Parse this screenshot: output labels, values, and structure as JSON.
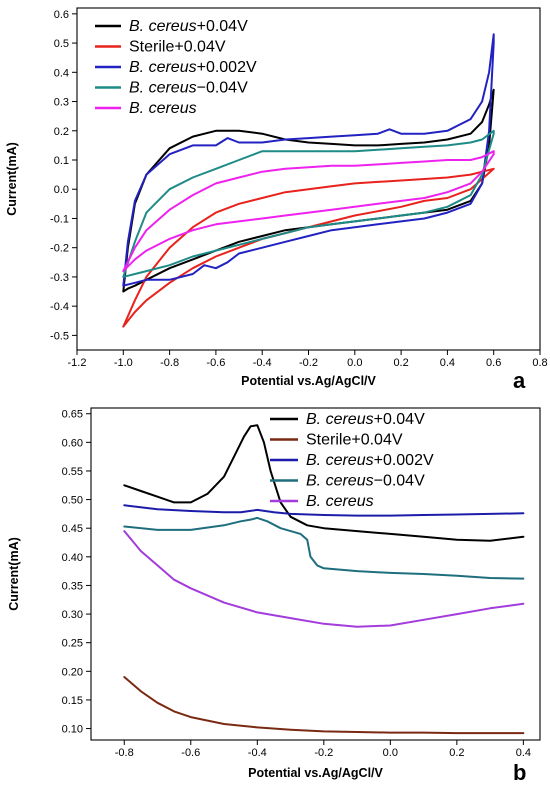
{
  "chart_data": [
    {
      "type": "line",
      "panel": "a",
      "xlabel": "Potential vs.Ag/AgCl/V",
      "ylabel": "Current(mA)",
      "xlim": [
        -1.2,
        0.8
      ],
      "ylim": [
        -0.55,
        0.62
      ],
      "xticks": [
        -1.2,
        -1.0,
        -0.8,
        -0.6,
        -0.4,
        -0.2,
        0.0,
        0.2,
        0.4,
        0.6,
        0.8
      ],
      "xtick_labels": [
        "-1.2",
        "-1.0",
        "-0.8",
        "-0.6",
        "-0.4",
        "-0.2",
        "0.0",
        "0.2",
        "0.4",
        "0.6",
        "0.8"
      ],
      "yticks": [
        -0.5,
        -0.4,
        -0.3,
        -0.2,
        -0.1,
        0.0,
        0.1,
        0.2,
        0.3,
        0.4,
        0.5,
        0.6
      ],
      "ytick_labels": [
        "-0.5",
        "-0.4",
        "-0.3",
        "-0.2",
        "-0.1",
        "0.0",
        "0.1",
        "0.2",
        "0.3",
        "0.4",
        "0.5",
        "0.6"
      ],
      "grid": false,
      "legend_position": "top-left",
      "series": [
        {
          "name": "B. cereus+0.04V",
          "name_parts": [
            {
              "t": "B. cereus",
              "i": true
            },
            {
              "t": "+0.04V",
              "i": false
            }
          ],
          "color": "#000000",
          "x": [
            -1.0,
            -0.98,
            -0.95,
            -0.9,
            -0.8,
            -0.7,
            -0.6,
            -0.5,
            -0.4,
            -0.3,
            -0.2,
            -0.1,
            0.0,
            0.1,
            0.2,
            0.3,
            0.4,
            0.5,
            0.55,
            0.58,
            0.6,
            0.6,
            0.58,
            0.55,
            0.5,
            0.4,
            0.3,
            0.2,
            0.1,
            0.0,
            -0.1,
            -0.2,
            -0.3,
            -0.4,
            -0.5,
            -0.6,
            -0.7,
            -0.8,
            -0.9,
            -0.95,
            -0.98,
            -1.0
          ],
          "y": [
            -0.35,
            -0.2,
            -0.05,
            0.05,
            0.14,
            0.18,
            0.2,
            0.2,
            0.19,
            0.17,
            0.16,
            0.155,
            0.15,
            0.15,
            0.155,
            0.16,
            0.17,
            0.19,
            0.23,
            0.29,
            0.34,
            0.34,
            0.15,
            0.02,
            -0.04,
            -0.07,
            -0.08,
            -0.09,
            -0.1,
            -0.11,
            -0.12,
            -0.13,
            -0.14,
            -0.16,
            -0.18,
            -0.21,
            -0.24,
            -0.27,
            -0.31,
            -0.33,
            -0.34,
            -0.35
          ]
        },
        {
          "name": "Sterile+0.04V",
          "name_parts": [
            {
              "t": "Sterile+0.04V",
              "i": false
            }
          ],
          "color": "#e8221c",
          "x": [
            -1.0,
            -0.95,
            -0.9,
            -0.8,
            -0.7,
            -0.6,
            -0.5,
            -0.4,
            -0.3,
            -0.2,
            -0.1,
            0.0,
            0.1,
            0.2,
            0.3,
            0.4,
            0.5,
            0.6,
            0.6,
            0.5,
            0.4,
            0.3,
            0.2,
            0.1,
            0.0,
            -0.1,
            -0.2,
            -0.3,
            -0.4,
            -0.5,
            -0.6,
            -0.7,
            -0.8,
            -0.9,
            -0.95,
            -1.0
          ],
          "y": [
            -0.47,
            -0.38,
            -0.3,
            -0.2,
            -0.13,
            -0.08,
            -0.05,
            -0.03,
            -0.01,
            0.0,
            0.01,
            0.02,
            0.025,
            0.03,
            0.035,
            0.04,
            0.05,
            0.07,
            0.07,
            0.0,
            -0.03,
            -0.04,
            -0.06,
            -0.075,
            -0.09,
            -0.11,
            -0.13,
            -0.15,
            -0.17,
            -0.2,
            -0.23,
            -0.27,
            -0.32,
            -0.38,
            -0.42,
            -0.47
          ]
        },
        {
          "name": "B. cereus+0.002V",
          "name_parts": [
            {
              "t": "B. cereus",
              "i": true
            },
            {
              "t": "+0.002V",
              "i": false
            }
          ],
          "color": "#2222c2",
          "x": [
            -1.0,
            -0.98,
            -0.95,
            -0.9,
            -0.8,
            -0.7,
            -0.6,
            -0.55,
            -0.5,
            -0.4,
            -0.3,
            -0.2,
            -0.1,
            0.0,
            0.1,
            0.15,
            0.2,
            0.3,
            0.4,
            0.5,
            0.55,
            0.58,
            0.6,
            0.6,
            0.58,
            0.55,
            0.5,
            0.4,
            0.3,
            0.2,
            0.1,
            0.0,
            -0.1,
            -0.2,
            -0.3,
            -0.4,
            -0.5,
            -0.55,
            -0.6,
            -0.65,
            -0.7,
            -0.8,
            -0.9,
            -0.95,
            -1.0
          ],
          "y": [
            -0.33,
            -0.18,
            -0.04,
            0.05,
            0.12,
            0.15,
            0.15,
            0.175,
            0.16,
            0.16,
            0.17,
            0.175,
            0.18,
            0.185,
            0.19,
            0.205,
            0.19,
            0.19,
            0.2,
            0.24,
            0.3,
            0.4,
            0.53,
            0.5,
            0.2,
            0.02,
            -0.05,
            -0.08,
            -0.1,
            -0.11,
            -0.12,
            -0.13,
            -0.14,
            -0.16,
            -0.18,
            -0.2,
            -0.22,
            -0.25,
            -0.27,
            -0.26,
            -0.29,
            -0.31,
            -0.31,
            -0.32,
            -0.33
          ]
        },
        {
          "name": "B. cereus−0.04V",
          "name_parts": [
            {
              "t": "B. cereus",
              "i": true
            },
            {
              "t": "−0.04V",
              "i": false
            }
          ],
          "color": "#1e8b86",
          "x": [
            -1.0,
            -0.95,
            -0.9,
            -0.8,
            -0.7,
            -0.6,
            -0.5,
            -0.4,
            -0.3,
            -0.2,
            -0.1,
            0.0,
            0.1,
            0.2,
            0.3,
            0.4,
            0.5,
            0.55,
            0.6,
            0.6,
            0.55,
            0.5,
            0.4,
            0.3,
            0.2,
            0.1,
            0.0,
            -0.1,
            -0.2,
            -0.3,
            -0.4,
            -0.5,
            -0.6,
            -0.7,
            -0.8,
            -0.9,
            -0.95,
            -1.0
          ],
          "y": [
            -0.3,
            -0.18,
            -0.08,
            0.0,
            0.04,
            0.07,
            0.1,
            0.13,
            0.13,
            0.13,
            0.13,
            0.13,
            0.135,
            0.14,
            0.145,
            0.15,
            0.16,
            0.17,
            0.2,
            0.19,
            0.05,
            -0.02,
            -0.06,
            -0.08,
            -0.09,
            -0.1,
            -0.11,
            -0.12,
            -0.13,
            -0.15,
            -0.17,
            -0.19,
            -0.21,
            -0.23,
            -0.26,
            -0.28,
            -0.29,
            -0.3
          ]
        },
        {
          "name": "B. cereus",
          "name_parts": [
            {
              "t": "B. cereus",
              "i": true
            }
          ],
          "color": "#ee22ee",
          "x": [
            -1.0,
            -0.95,
            -0.9,
            -0.8,
            -0.7,
            -0.6,
            -0.5,
            -0.4,
            -0.3,
            -0.2,
            -0.1,
            0.0,
            0.1,
            0.2,
            0.3,
            0.4,
            0.5,
            0.55,
            0.6,
            0.6,
            0.55,
            0.5,
            0.4,
            0.3,
            0.2,
            0.1,
            0.0,
            -0.1,
            -0.2,
            -0.3,
            -0.4,
            -0.5,
            -0.6,
            -0.7,
            -0.8,
            -0.9,
            -0.95,
            -1.0
          ],
          "y": [
            -0.28,
            -0.2,
            -0.14,
            -0.07,
            -0.02,
            0.02,
            0.04,
            0.06,
            0.07,
            0.075,
            0.08,
            0.08,
            0.085,
            0.09,
            0.095,
            0.1,
            0.1,
            0.11,
            0.13,
            0.12,
            0.06,
            0.02,
            -0.01,
            -0.03,
            -0.04,
            -0.05,
            -0.06,
            -0.07,
            -0.08,
            -0.09,
            -0.1,
            -0.11,
            -0.12,
            -0.14,
            -0.17,
            -0.21,
            -0.24,
            -0.28
          ]
        }
      ]
    },
    {
      "type": "line",
      "panel": "b",
      "xlabel": "Potential vs.Ag/AgCl/V",
      "ylabel": "Current(mA)",
      "xlim": [
        -0.9,
        0.45
      ],
      "ylim": [
        0.08,
        0.66
      ],
      "xticks": [
        -0.8,
        -0.6,
        -0.4,
        -0.2,
        0.0,
        0.2,
        0.4
      ],
      "xtick_labels": [
        "-0.8",
        "-0.6",
        "-0.4",
        "-0.2",
        "0.0",
        "0.2",
        "0.4"
      ],
      "yticks": [
        0.1,
        0.15,
        0.2,
        0.25,
        0.3,
        0.35,
        0.4,
        0.45,
        0.5,
        0.55,
        0.6,
        0.65
      ],
      "ytick_labels": [
        "0.10",
        "0.15",
        "0.20",
        "0.25",
        "0.30",
        "0.35",
        "0.40",
        "0.45",
        "0.50",
        "0.55",
        "0.60",
        "0.65"
      ],
      "grid": false,
      "legend_position": "top-right",
      "series": [
        {
          "name": "B. cereus+0.04V",
          "name_parts": [
            {
              "t": "B. cereus",
              "i": true
            },
            {
              "t": "+0.04V",
              "i": false
            }
          ],
          "color": "#000000",
          "x": [
            -0.8,
            -0.75,
            -0.7,
            -0.65,
            -0.6,
            -0.55,
            -0.5,
            -0.47,
            -0.44,
            -0.42,
            -0.4,
            -0.38,
            -0.36,
            -0.33,
            -0.3,
            -0.25,
            -0.2,
            -0.1,
            0.0,
            0.1,
            0.2,
            0.3,
            0.4
          ],
          "y": [
            0.525,
            0.515,
            0.505,
            0.495,
            0.495,
            0.51,
            0.54,
            0.575,
            0.61,
            0.628,
            0.63,
            0.6,
            0.55,
            0.495,
            0.47,
            0.455,
            0.45,
            0.445,
            0.44,
            0.435,
            0.43,
            0.428,
            0.435
          ]
        },
        {
          "name": "Sterile+0.04V",
          "name_parts": [
            {
              "t": "Sterile+0.04V",
              "i": false
            }
          ],
          "color": "#7a2a12",
          "x": [
            -0.8,
            -0.75,
            -0.7,
            -0.65,
            -0.6,
            -0.5,
            -0.4,
            -0.3,
            -0.2,
            -0.1,
            0.0,
            0.1,
            0.2,
            0.3,
            0.4
          ],
          "y": [
            0.19,
            0.165,
            0.145,
            0.13,
            0.12,
            0.108,
            0.102,
            0.098,
            0.095,
            0.094,
            0.093,
            0.093,
            0.092,
            0.092,
            0.092
          ]
        },
        {
          "name": "B. cereus+0.002V",
          "name_parts": [
            {
              "t": "B. cereus",
              "i": true
            },
            {
              "t": "+0.002V",
              "i": false
            }
          ],
          "color": "#1c1caa",
          "x": [
            -0.8,
            -0.7,
            -0.6,
            -0.5,
            -0.45,
            -0.4,
            -0.35,
            -0.3,
            -0.2,
            -0.1,
            0.0,
            0.1,
            0.2,
            0.3,
            0.4
          ],
          "y": [
            0.49,
            0.483,
            0.48,
            0.478,
            0.478,
            0.482,
            0.478,
            0.475,
            0.473,
            0.472,
            0.472,
            0.473,
            0.474,
            0.475,
            0.476
          ]
        },
        {
          "name": "B. cereus−0.04V",
          "name_parts": [
            {
              "t": "B. cereus",
              "i": true
            },
            {
              "t": "−0.04V",
              "i": false
            }
          ],
          "color": "#1e6e7e",
          "x": [
            -0.8,
            -0.7,
            -0.6,
            -0.5,
            -0.45,
            -0.42,
            -0.4,
            -0.37,
            -0.33,
            -0.3,
            -0.27,
            -0.25,
            -0.24,
            -0.22,
            -0.2,
            -0.1,
            0.0,
            0.1,
            0.2,
            0.3,
            0.4
          ],
          "y": [
            0.453,
            0.447,
            0.447,
            0.455,
            0.462,
            0.465,
            0.468,
            0.462,
            0.45,
            0.445,
            0.44,
            0.43,
            0.4,
            0.385,
            0.38,
            0.375,
            0.372,
            0.37,
            0.367,
            0.363,
            0.362
          ]
        },
        {
          "name": "B. cereus",
          "name_parts": [
            {
              "t": "B. cereus",
              "i": true
            }
          ],
          "color": "#a33cdc",
          "x": [
            -0.8,
            -0.75,
            -0.7,
            -0.65,
            -0.6,
            -0.5,
            -0.4,
            -0.3,
            -0.2,
            -0.1,
            0.0,
            0.1,
            0.2,
            0.3,
            0.4
          ],
          "y": [
            0.445,
            0.41,
            0.385,
            0.36,
            0.345,
            0.32,
            0.303,
            0.293,
            0.283,
            0.278,
            0.28,
            0.29,
            0.3,
            0.31,
            0.318
          ]
        }
      ]
    }
  ]
}
